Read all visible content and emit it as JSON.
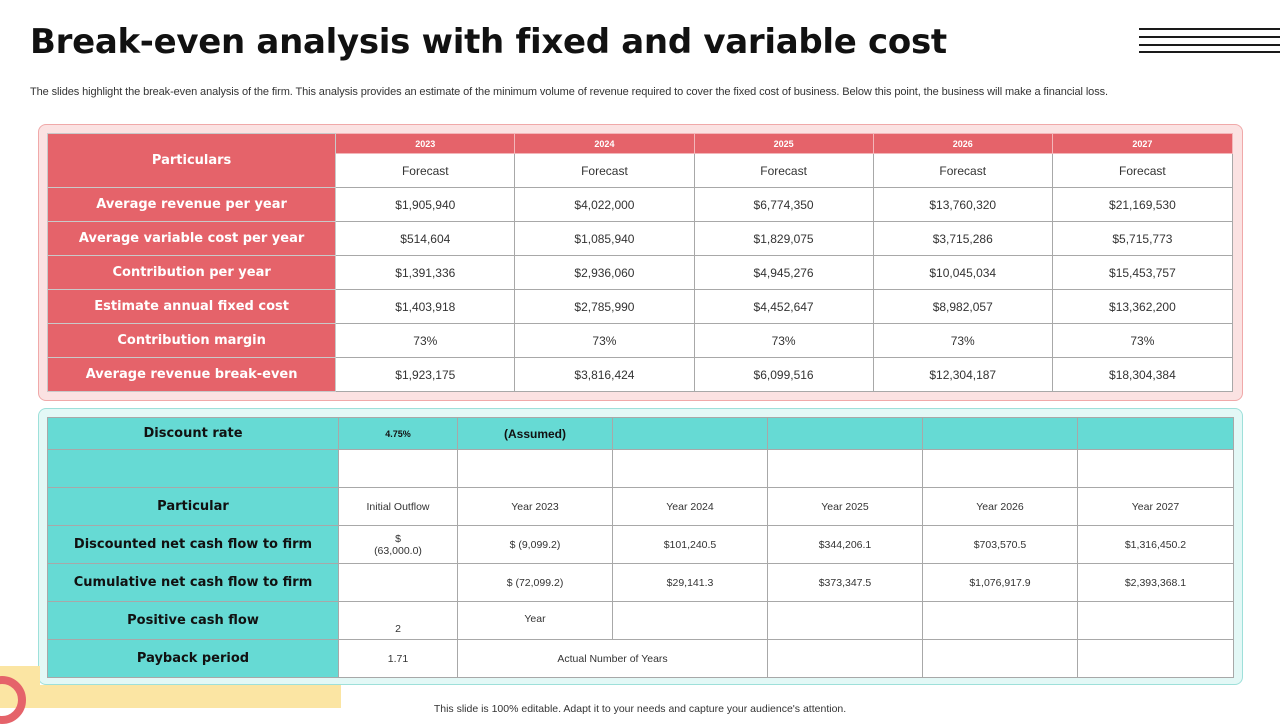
{
  "title": "Break-even analysis with fixed and variable cost",
  "subtitle": "The slides highlight the break-even analysis of the firm. This analysis provides an estimate of the minimum volume of revenue required to cover the fixed cost of business. Below this point, the business will make a financial loss.",
  "table1": {
    "particulars_label": "Particulars",
    "years": [
      "2023",
      "2024",
      "2025",
      "2026",
      "2027"
    ],
    "forecast": [
      "Forecast",
      "Forecast",
      "Forecast",
      "Forecast",
      "Forecast"
    ],
    "rows": [
      {
        "label": "Average revenue per year",
        "values": [
          "$1,905,940",
          "$4,022,000",
          "$6,774,350",
          "$13,760,320",
          "$21,169,530"
        ]
      },
      {
        "label": "Average variable cost per year",
        "values": [
          "$514,604",
          "$1,085,940",
          "$1,829,075",
          "$3,715,286",
          "$5,715,773"
        ]
      },
      {
        "label": "Contribution per year",
        "values": [
          "$1,391,336",
          "$2,936,060",
          "$4,945,276",
          "$10,045,034",
          "$15,453,757"
        ]
      },
      {
        "label": "Estimate annual fixed cost",
        "values": [
          "$1,403,918",
          "$2,785,990",
          "$4,452,647",
          "$8,982,057",
          "$13,362,200"
        ]
      },
      {
        "label": "Contribution margin",
        "values": [
          "73%",
          "73%",
          "73%",
          "73%",
          "73%"
        ]
      },
      {
        "label": "Average revenue break-even",
        "values": [
          "$1,923,175",
          "$3,816,424",
          "$6,099,516",
          "$12,304,187",
          "$18,304,384"
        ]
      }
    ]
  },
  "table2": {
    "discount_label": "Discount rate",
    "discount_value": "4.75%",
    "assumed": "(Assumed)",
    "particular_label": "Particular",
    "columns": [
      "Initial Outflow",
      "Year 2023",
      "Year 2024",
      "Year 2025",
      "Year 2026",
      "Year 2027"
    ],
    "dncf_label": "Discounted net cash flow to firm",
    "dncf_initial_symbol": "$",
    "dncf_initial_value": "(63,000.0)",
    "dncf_values": [
      "$ (9,099.2)",
      "$101,240.5",
      "$344,206.1",
      "$703,570.5",
      "$1,316,450.2"
    ],
    "cncf_label": "Cumulative net cash flow to firm",
    "cncf_values": [
      "$ (72,099.2)",
      "$29,141.3",
      "$373,347.5",
      "$1,076,917.9",
      "$2,393,368.1"
    ],
    "pcf_label": "Positive cash flow",
    "pcf_value": "2",
    "pcf_unit": "Year",
    "payback_label": "Payback period",
    "payback_value": "1.71",
    "payback_unit": "Actual Number of Years"
  },
  "footer": "This slide is 100% editable. Adapt it to your needs and capture your audience's attention.",
  "colors": {
    "red": "#e5636a",
    "teal": "#66dad4",
    "yellow": "#fbe5a3"
  }
}
